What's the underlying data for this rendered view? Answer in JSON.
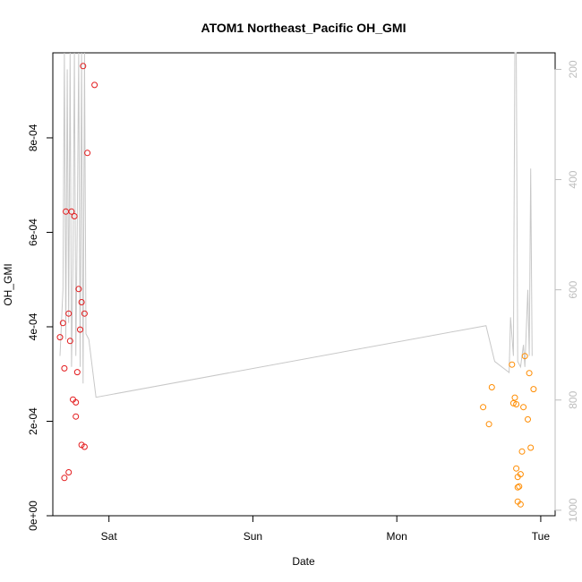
{
  "chart_data": {
    "type": "scatter",
    "title": "ATOM1 Northeast_Pacific OH_GMI",
    "xlabel": "Date",
    "ylabel": "OH_GMI",
    "x_ticks": [
      "Sat",
      "Sun",
      "Mon",
      "Tue"
    ],
    "x_tick_values": [
      1.0,
      2.0,
      3.0,
      4.0
    ],
    "xlim": [
      0.61,
      4.1
    ],
    "ylim": [
      0,
      0.00098
    ],
    "y_ticks": [
      "0e+00",
      "2e-04",
      "4e-04",
      "6e-04",
      "8e-04"
    ],
    "y_tick_values": [
      0,
      0.0002,
      0.0004,
      0.0006,
      0.0008
    ],
    "right_axis": {
      "label": "",
      "ticks": [
        "200",
        "400",
        "600",
        "800",
        "1000"
      ],
      "tick_values": [
        200,
        400,
        600,
        800,
        1000
      ],
      "ylim": [
        1010,
        170
      ],
      "color": "#bdbdbd"
    },
    "grid": false,
    "legend": "none",
    "series": [
      {
        "color": "#e31a1c",
        "points": [
          [
            0.66,
            0.000378
          ],
          [
            0.68,
            0.000408
          ],
          [
            0.69,
            0.000312
          ],
          [
            0.69,
            8e-05
          ],
          [
            0.7,
            0.000644
          ],
          [
            0.72,
            0.000428
          ],
          [
            0.72,
            9.2e-05
          ],
          [
            0.73,
            0.00037
          ],
          [
            0.74,
            0.000644
          ],
          [
            0.75,
            0.000246
          ],
          [
            0.76,
            0.000634
          ],
          [
            0.77,
            0.00024
          ],
          [
            0.77,
            0.00021
          ],
          [
            0.78,
            0.000304
          ],
          [
            0.79,
            0.00048
          ],
          [
            0.8,
            0.000394
          ],
          [
            0.81,
            0.000452
          ],
          [
            0.81,
            0.00015
          ],
          [
            0.82,
            0.000952
          ],
          [
            0.83,
            0.000428
          ],
          [
            0.83,
            0.000146
          ],
          [
            0.85,
            0.000768
          ],
          [
            0.9,
            0.000912
          ]
        ]
      },
      {
        "color": "#ff8c00",
        "points": [
          [
            3.6,
            0.00023
          ],
          [
            3.64,
            0.000194
          ],
          [
            3.66,
            0.000272
          ],
          [
            3.8,
            0.00032
          ],
          [
            3.81,
            0.000238
          ],
          [
            3.82,
            0.00025
          ],
          [
            3.83,
            0.000236
          ],
          [
            3.83,
            0.0001
          ],
          [
            3.84,
            8.2e-05
          ],
          [
            3.84,
            6e-05
          ],
          [
            3.84,
            3e-05
          ],
          [
            3.85,
            6.2e-05
          ],
          [
            3.86,
            2.4e-05
          ],
          [
            3.86,
            8.8e-05
          ],
          [
            3.87,
            0.000136
          ],
          [
            3.88,
            0.00023
          ],
          [
            3.89,
            0.000338
          ],
          [
            3.91,
            0.000204
          ],
          [
            3.92,
            0.000302
          ],
          [
            3.93,
            0.000144
          ],
          [
            3.95,
            0.000268
          ]
        ]
      }
    ],
    "line_series": {
      "axis": "right",
      "color": "#c8c8c8",
      "points": [
        [
          0.66,
          720
        ],
        [
          0.68,
          600
        ],
        [
          0.69,
          100
        ],
        [
          0.7,
          690
        ],
        [
          0.71,
          200
        ],
        [
          0.72,
          660
        ],
        [
          0.73,
          100
        ],
        [
          0.74,
          740
        ],
        [
          0.75,
          550
        ],
        [
          0.76,
          100
        ],
        [
          0.77,
          720
        ],
        [
          0.78,
          480
        ],
        [
          0.79,
          100
        ],
        [
          0.8,
          740
        ],
        [
          0.81,
          100
        ],
        [
          0.82,
          770
        ],
        [
          0.83,
          100
        ],
        [
          0.84,
          680
        ],
        [
          0.86,
          690
        ],
        [
          0.91,
          795
        ],
        [
          3.62,
          665
        ],
        [
          3.68,
          730
        ],
        [
          3.78,
          750
        ],
        [
          3.79,
          650
        ],
        [
          3.81,
          720
        ],
        [
          3.82,
          100
        ],
        [
          3.83,
          100
        ],
        [
          3.84,
          730
        ],
        [
          3.86,
          740
        ],
        [
          3.88,
          700
        ],
        [
          3.89,
          740
        ],
        [
          3.91,
          600
        ],
        [
          3.92,
          720
        ],
        [
          3.93,
          380
        ],
        [
          3.94,
          720
        ]
      ]
    }
  }
}
